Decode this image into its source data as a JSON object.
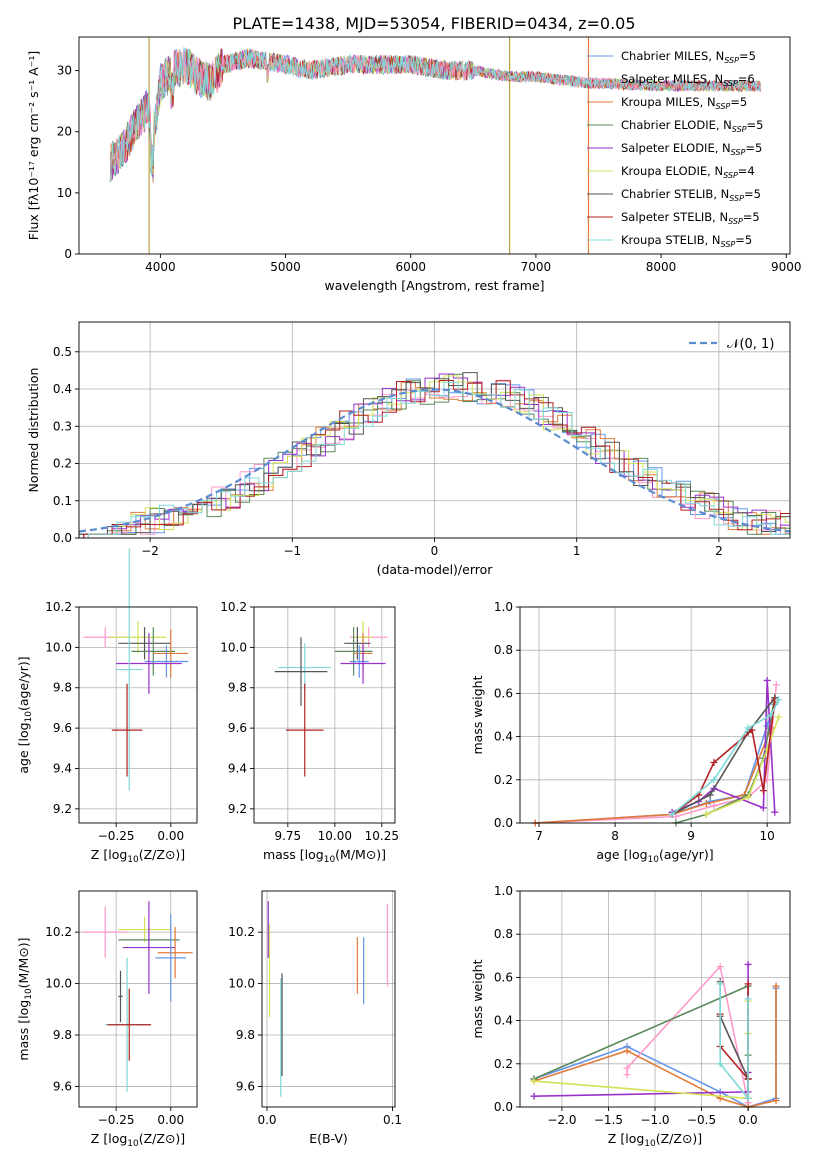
{
  "title": "PLATE=1438, MJD=53054, FIBERID=0434, z=0.05",
  "colors": {
    "chabrier_miles": "#6495ed",
    "salpeter_miles": "#ff99cc",
    "kroupa_miles": "#e07b39",
    "chabrier_elodie": "#5a8a5a",
    "salpeter_elodie": "#9932cc",
    "kroupa_elodie": "#d4e157",
    "chabrier_stelib": "#555555",
    "salpeter_stelib": "#b22222",
    "kroupa_stelib": "#7fd8d8",
    "normal_curve": "#5b8bd0"
  },
  "chart_data": [
    {
      "type": "line",
      "title": "PLATE=1438, MJD=53054, FIBERID=0434, z=0.05",
      "xlabel": "wavelength [Angstrom, rest frame]",
      "ylabel": "Flux [fλ10⁻¹⁷ erg cm⁻² s⁻¹ A⁻¹]",
      "xlim": [
        3350,
        9030
      ],
      "ylim": [
        0,
        35.5
      ],
      "xticks": [
        4000,
        5000,
        6000,
        7000,
        8000,
        9000
      ],
      "yticks": [
        0,
        10,
        20,
        30
      ],
      "grid": false,
      "legend_position": "top-right",
      "series": [
        {
          "name": "Chabrier MILES, N_SSP=5",
          "color": "#6495ed"
        },
        {
          "name": "Salpeter MILES, N_SSP=6",
          "color": "#ff99cc"
        },
        {
          "name": "Kroupa MILES, N_SSP=5",
          "color": "#e07b39"
        },
        {
          "name": "Chabrier ELODIE, N_SSP=5",
          "color": "#5a8a5a"
        },
        {
          "name": "Salpeter ELODIE, N_SSP=5",
          "color": "#9932cc"
        },
        {
          "name": "Kroupa ELODIE, N_SSP=4",
          "color": "#d4e157"
        },
        {
          "name": "Chabrier STELIB, N_SSP=5",
          "color": "#555555"
        },
        {
          "name": "Salpeter STELIB, N_SSP=5",
          "color": "#b22222"
        },
        {
          "name": "Kroupa STELIB, N_SSP=5",
          "color": "#7fd8d8"
        }
      ],
      "spectrum_envelope": {
        "x": [
          3600,
          3700,
          3800,
          3900,
          3950,
          4000,
          4100,
          4200,
          4300,
          4400,
          4500,
          4700,
          5000,
          5200,
          5500,
          6000,
          6300,
          6500,
          6800,
          7000,
          7400,
          8000,
          8500,
          8800
        ],
        "y": [
          15,
          17,
          21,
          24,
          20,
          28,
          30,
          31,
          29,
          28,
          31,
          32,
          31,
          30,
          31,
          31,
          30,
          30,
          29,
          29,
          28,
          27.5,
          27.5,
          27.5
        ]
      },
      "vertical_lines": [
        {
          "x": 3910,
          "color": "#b8a040"
        },
        {
          "x": 6790,
          "color": "#b8a040"
        },
        {
          "x": 7420,
          "color": "#e07b39"
        }
      ]
    },
    {
      "type": "bar",
      "xlabel": "(data-model)/error",
      "ylabel": "Normed distribution",
      "xlim": [
        -2.5,
        2.5
      ],
      "ylim": [
        0,
        0.58
      ],
      "xticks": [
        -2,
        -1,
        0,
        1,
        2
      ],
      "yticks": [
        0.0,
        0.1,
        0.2,
        0.3,
        0.4,
        0.5
      ],
      "grid": true,
      "legend_position": "top-right",
      "legend": [
        "𝒩(0, 1)"
      ],
      "normal_pdf": {
        "mean": 0,
        "std": 1
      }
    },
    {
      "type": "scatter",
      "xlabel": "Z [log10(Z/Z⊙)]",
      "ylabel": "age  [log10(age/yr)]",
      "xlim": [
        -0.42,
        0.12
      ],
      "ylim": [
        9.13,
        10.2
      ],
      "xticks": [
        -0.25,
        0.0
      ],
      "yticks": [
        9.2,
        9.4,
        9.6,
        9.8,
        10.0,
        10.2
      ],
      "grid": true,
      "points": [
        {
          "x": -0.3,
          "y": 10.05,
          "xerr": 0.1,
          "yerr": 0.05,
          "series": "Salpeter MILES"
        },
        {
          "x": -0.15,
          "y": 10.05,
          "xerr": 0.13,
          "yerr": 0.08,
          "series": "Kroupa ELODIE"
        },
        {
          "x": -0.12,
          "y": 10.02,
          "xerr": 0.12,
          "yerr": 0.08,
          "series": "Chabrier STELIB"
        },
        {
          "x": -0.08,
          "y": 9.98,
          "xerr": 0.1,
          "yerr": 0.12,
          "series": "Chabrier ELODIE"
        },
        {
          "x": 0.0,
          "y": 9.97,
          "xerr": 0.08,
          "yerr": 0.12,
          "series": "Kroupa MILES"
        },
        {
          "x": -0.02,
          "y": 9.93,
          "xerr": 0.1,
          "yerr": 0.08,
          "series": "Chabrier MILES"
        },
        {
          "x": -0.1,
          "y": 9.92,
          "xerr": 0.15,
          "yerr": 0.15,
          "series": "Salpeter ELODIE"
        },
        {
          "x": -0.19,
          "y": 9.89,
          "xerr": 0.06,
          "yerr": 0.6,
          "series": "Kroupa STELIB"
        },
        {
          "x": -0.2,
          "y": 9.59,
          "xerr": 0.07,
          "yerr": 0.23,
          "series": "Salpeter STELIB"
        }
      ]
    },
    {
      "type": "scatter",
      "xlabel": "mass [log10(M/M⊙)]",
      "ylabel": "",
      "xlim": [
        9.57,
        10.32
      ],
      "ylim": [
        9.13,
        10.2
      ],
      "xticks": [
        9.75,
        10.0,
        10.25
      ],
      "yticks": [
        9.2,
        9.4,
        9.6,
        9.8,
        10.0,
        10.2
      ],
      "grid": true,
      "points": [
        {
          "x": 10.18,
          "y": 10.05,
          "xerr": 0.1,
          "yerr": 0.05,
          "series": "Salpeter MILES"
        },
        {
          "x": 10.15,
          "y": 10.05,
          "xerr": 0.05,
          "yerr": 0.08,
          "series": "Kroupa ELODIE"
        },
        {
          "x": 10.12,
          "y": 10.02,
          "xerr": 0.07,
          "yerr": 0.08,
          "series": "Chabrier STELIB"
        },
        {
          "x": 10.1,
          "y": 9.98,
          "xerr": 0.1,
          "yerr": 0.12,
          "series": "Chabrier ELODIE"
        },
        {
          "x": 10.15,
          "y": 9.97,
          "xerr": 0.05,
          "yerr": 0.1,
          "series": "Kroupa MILES"
        },
        {
          "x": 10.13,
          "y": 9.93,
          "xerr": 0.05,
          "yerr": 0.08,
          "series": "Chabrier MILES"
        },
        {
          "x": 10.15,
          "y": 9.92,
          "xerr": 0.12,
          "yerr": 0.1,
          "series": "Salpeter ELODIE"
        },
        {
          "x": 9.84,
          "y": 9.9,
          "xerr": 0.14,
          "yerr": 0.12,
          "series": "Kroupa STELIB"
        },
        {
          "x": 9.84,
          "y": 9.59,
          "xerr": 0.1,
          "yerr": 0.23,
          "series": "Salpeter STELIB"
        },
        {
          "x": 9.82,
          "y": 9.88,
          "xerr": 0.14,
          "yerr": 0.17,
          "series": "Chabrier STELIB"
        }
      ]
    },
    {
      "type": "line",
      "xlabel": "age  [log10(age/yr)]",
      "ylabel": "mass weight",
      "xlim": [
        6.75,
        10.3
      ],
      "ylim": [
        0,
        1.0
      ],
      "xticks": [
        7,
        8,
        9,
        10
      ],
      "yticks": [
        0.0,
        0.2,
        0.4,
        0.6,
        0.8,
        1.0
      ],
      "grid": true,
      "series": [
        {
          "name": "Chabrier MILES",
          "color": "#6495ed",
          "x": [
            6.95,
            8.75,
            9.25,
            9.7,
            10.0,
            10.1
          ],
          "y": [
            0.0,
            0.04,
            0.1,
            0.13,
            0.45,
            0.55
          ]
        },
        {
          "name": "Salpeter MILES",
          "color": "#ff99cc",
          "x": [
            6.95,
            8.8,
            9.3,
            9.75,
            10.0,
            10.12
          ],
          "y": [
            0.0,
            0.03,
            0.08,
            0.12,
            0.2,
            0.64
          ]
        },
        {
          "name": "Kroupa MILES",
          "color": "#e07b39",
          "x": [
            6.95,
            8.75,
            9.2,
            9.7,
            10.05,
            10.1
          ],
          "y": [
            0.0,
            0.04,
            0.09,
            0.13,
            0.44,
            0.56
          ]
        },
        {
          "name": "Chabrier ELODIE",
          "color": "#5a8a5a",
          "x": [
            8.8,
            9.2,
            9.75,
            9.95,
            10.1
          ],
          "y": [
            0.0,
            0.04,
            0.13,
            0.3,
            0.58
          ]
        },
        {
          "name": "Salpeter ELODIE",
          "color": "#9932cc",
          "x": [
            8.75,
            9.1,
            9.3,
            9.95,
            10.0,
            10.1
          ],
          "y": [
            0.05,
            0.1,
            0.16,
            0.07,
            0.66,
            0.05
          ]
        },
        {
          "name": "Kroupa ELODIE",
          "color": "#d4e157",
          "x": [
            9.2,
            9.75,
            10.0,
            10.15
          ],
          "y": [
            0.04,
            0.12,
            0.34,
            0.49
          ]
        },
        {
          "name": "Chabrier STELIB",
          "color": "#555555",
          "x": [
            8.75,
            9.25,
            9.75,
            10.1
          ],
          "y": [
            0.04,
            0.13,
            0.42,
            0.58
          ]
        },
        {
          "name": "Salpeter STELIB",
          "color": "#b22222",
          "x": [
            8.75,
            9.1,
            9.3,
            9.8,
            9.95,
            10.1
          ],
          "y": [
            0.04,
            0.13,
            0.28,
            0.43,
            0.15,
            0.57
          ]
        },
        {
          "name": "Kroupa STELIB",
          "color": "#7fd8d8",
          "x": [
            8.75,
            9.3,
            9.75,
            10.05,
            10.15
          ],
          "y": [
            0.04,
            0.2,
            0.44,
            0.5,
            0.57
          ]
        }
      ]
    },
    {
      "type": "scatter",
      "xlabel": "Z [log10(Z/Z⊙)]",
      "ylabel": "mass [log10(M/M⊙)]",
      "xlim": [
        -0.42,
        0.12
      ],
      "ylim": [
        9.52,
        10.36
      ],
      "xticks": [
        -0.25,
        0.0
      ],
      "yticks": [
        9.6,
        9.8,
        10.0,
        10.2
      ],
      "grid": true,
      "points": [
        {
          "x": -0.3,
          "y": 10.2,
          "xerr": 0.1,
          "yerr": 0.1,
          "series": "Salpeter MILES"
        },
        {
          "x": -0.12,
          "y": 10.21,
          "xerr": 0.12,
          "yerr": 0.05,
          "series": "Kroupa ELODIE"
        },
        {
          "x": -0.1,
          "y": 10.17,
          "xerr": 0.14,
          "yerr": 0.05,
          "series": "Chabrier ELODIE"
        },
        {
          "x": -0.1,
          "y": 10.14,
          "xerr": 0.12,
          "yerr": 0.18,
          "series": "Salpeter ELODIE"
        },
        {
          "x": 0.02,
          "y": 10.12,
          "xerr": 0.08,
          "yerr": 0.1,
          "series": "Kroupa MILES"
        },
        {
          "x": 0.0,
          "y": 10.1,
          "xerr": 0.07,
          "yerr": 0.17,
          "series": "Chabrier MILES"
        },
        {
          "x": -0.23,
          "y": 9.95,
          "xerr": 0.01,
          "yerr": 0.1,
          "series": "Chabrier STELIB"
        },
        {
          "x": -0.2,
          "y": 9.84,
          "xerr": 0.1,
          "yerr": 0.26,
          "series": "Kroupa STELIB"
        },
        {
          "x": -0.19,
          "y": 9.84,
          "xerr": 0.1,
          "yerr": 0.14,
          "series": "Salpeter STELIB"
        }
      ]
    },
    {
      "type": "scatter",
      "xlabel": "E(B-V)",
      "ylabel": "",
      "xlim": [
        -0.004,
        0.102
      ],
      "ylim": [
        9.52,
        10.36
      ],
      "xticks": [
        0.0,
        0.1
      ],
      "yticks": [
        9.6,
        9.8,
        10.0,
        10.2
      ],
      "grid": true,
      "points": [
        {
          "x": 0.001,
          "y": 10.21,
          "yerr": 0.11,
          "series": "Salpeter ELODIE"
        },
        {
          "x": 0.002,
          "y": 10.05,
          "yerr": 0.18,
          "series": "Kroupa ELODIE"
        },
        {
          "x": 0.011,
          "y": 9.79,
          "yerr": 0.23,
          "series": "Kroupa STELIB"
        },
        {
          "x": 0.012,
          "y": 9.84,
          "yerr": 0.2,
          "series": "Chabrier STELIB"
        },
        {
          "x": 0.072,
          "y": 10.07,
          "yerr": 0.11,
          "series": "Kroupa MILES"
        },
        {
          "x": 0.077,
          "y": 10.05,
          "yerr": 0.13,
          "series": "Chabrier MILES"
        },
        {
          "x": 0.096,
          "y": 10.15,
          "yerr": 0.16,
          "series": "Salpeter MILES"
        }
      ]
    },
    {
      "type": "line",
      "xlabel": "Z [log10(Z/Z⊙)]",
      "ylabel": "mass weight",
      "xlim": [
        -2.45,
        0.45
      ],
      "ylim": [
        0,
        1.0
      ],
      "xticks": [
        -2.0,
        -1.5,
        -1.0,
        -0.5,
        0.0
      ],
      "yticks": [
        0.0,
        0.2,
        0.4,
        0.6,
        0.8,
        1.0
      ],
      "grid": true,
      "series": [
        {
          "name": "Chabrier MILES",
          "color": "#6495ed",
          "x": [
            -2.3,
            -1.3,
            -0.3,
            0.0,
            0.3,
            0.3
          ],
          "y": [
            0.13,
            0.28,
            0.07,
            0.0,
            0.04,
            0.55
          ]
        },
        {
          "name": "Salpeter MILES",
          "color": "#ff99cc",
          "x": [
            -1.3,
            -1.3,
            -0.3,
            0.0
          ],
          "y": [
            0.15,
            0.18,
            0.65,
            0.02
          ]
        },
        {
          "name": "Kroupa MILES",
          "color": "#e07b39",
          "x": [
            -2.3,
            -1.3,
            -0.3,
            0.0,
            0.3,
            0.3
          ],
          "y": [
            0.12,
            0.26,
            0.04,
            0.0,
            0.03,
            0.56
          ]
        },
        {
          "name": "Chabrier ELODIE",
          "color": "#5a8a5a",
          "x": [
            -2.3,
            0.0,
            0.0,
            0.0
          ],
          "y": [
            0.13,
            0.56,
            0.24,
            0.13
          ]
        },
        {
          "name": "Salpeter ELODIE",
          "color": "#9932cc",
          "x": [
            -2.3,
            0.0,
            0.0,
            0.0
          ],
          "y": [
            0.05,
            0.07,
            0.66,
            0.16
          ]
        },
        {
          "name": "Kroupa ELODIE",
          "color": "#d4e157",
          "x": [
            -2.3,
            0.0,
            0.0,
            0.0
          ],
          "y": [
            0.12,
            0.04,
            0.49,
            0.34
          ]
        },
        {
          "name": "Chabrier STELIB",
          "color": "#555555",
          "x": [
            -0.3,
            -0.3,
            0.0,
            0.0
          ],
          "y": [
            0.58,
            0.42,
            0.13,
            0.04
          ]
        },
        {
          "name": "Salpeter STELIB",
          "color": "#b22222",
          "x": [
            -0.3,
            -0.3,
            0.0,
            0.0
          ],
          "y": [
            0.43,
            0.28,
            0.13,
            0.57
          ]
        },
        {
          "name": "Kroupa STELIB",
          "color": "#7fd8d8",
          "x": [
            -0.3,
            -0.3,
            0.0,
            0.0
          ],
          "y": [
            0.57,
            0.2,
            0.04,
            0.5
          ]
        }
      ]
    }
  ]
}
